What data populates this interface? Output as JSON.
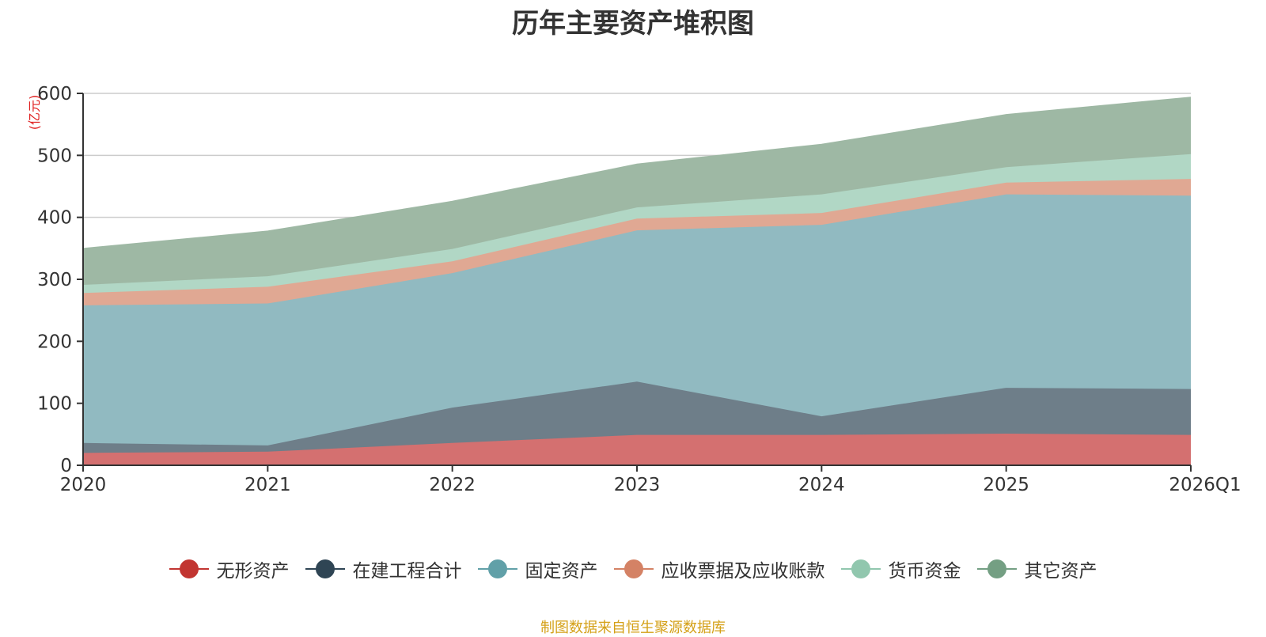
{
  "chart_data": {
    "type": "area",
    "stacked": true,
    "title": "历年主要资产堆积图",
    "unit_label": "(亿元)",
    "x": [
      "2020",
      "2021",
      "2022",
      "2023",
      "2024",
      "2025",
      "2026Q1"
    ],
    "ylim": [
      0,
      600
    ],
    "yticks": [
      "0",
      "100",
      "200",
      "300",
      "400",
      "500",
      "600"
    ],
    "grid": true,
    "legend_position": "bottom",
    "series": [
      {
        "name": "无形资产",
        "color": "#c23531",
        "fill": "#d47070",
        "values": [
          20,
          22,
          36,
          49,
          49,
          51,
          49
        ]
      },
      {
        "name": "在建工程合计",
        "color": "#2f4554",
        "fill": "#6e7e89",
        "values": [
          16,
          10,
          57,
          86,
          30,
          74,
          74
        ]
      },
      {
        "name": "固定资产",
        "color": "#61a0a8",
        "fill": "#91bac1",
        "values": [
          222,
          229,
          217,
          244,
          309,
          312,
          312
        ]
      },
      {
        "name": "应收票据及应收账款",
        "color": "#d48265",
        "fill": "#e0a893",
        "values": [
          20,
          27,
          19,
          19,
          19,
          19,
          27
        ]
      },
      {
        "name": "货币资金",
        "color": "#91c7ae",
        "fill": "#b1d7c5",
        "values": [
          13,
          17,
          20,
          18,
          30,
          25,
          40
        ]
      },
      {
        "name": "其它资产",
        "color": "#749f83",
        "fill": "#9eb8a4",
        "values": [
          59,
          73,
          77,
          70,
          81,
          85,
          92
        ]
      }
    ]
  },
  "source_note": "制图数据来自恒生聚源数据库"
}
